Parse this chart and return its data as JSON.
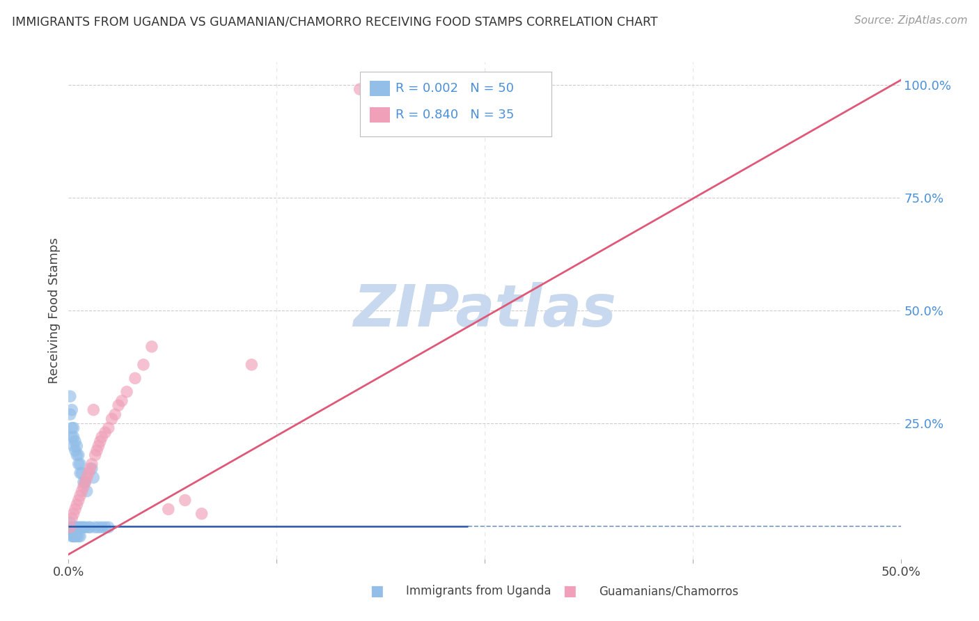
{
  "title": "IMMIGRANTS FROM UGANDA VS GUAMANIAN/CHAMORRO RECEIVING FOOD STAMPS CORRELATION CHART",
  "source": "Source: ZipAtlas.com",
  "ylabel": "Receiving Food Stamps",
  "xlim": [
    0.0,
    0.5
  ],
  "ylim": [
    -0.05,
    1.05
  ],
  "color_blue": "#92BEE8",
  "color_pink": "#F0A0B8",
  "line_blue": "#2255AA",
  "line_pink": "#E05878",
  "watermark": "ZIPatlas",
  "watermark_color": "#C8D8EE",
  "background_color": "#ffffff",
  "legend_label_blue": "Immigrants from Uganda",
  "legend_label_pink": "Guamanians/Chamorros",
  "blue_hline_y": 0.022,
  "blue_hline_xend": 0.24,
  "pink_line_x0": 0.0,
  "pink_line_x1": 0.5,
  "pink_line_y0": -0.04,
  "pink_line_y1": 1.01,
  "blue_scatter_x": [
    0.001,
    0.001,
    0.002,
    0.002,
    0.002,
    0.002,
    0.003,
    0.003,
    0.003,
    0.003,
    0.003,
    0.003,
    0.004,
    0.004,
    0.004,
    0.004,
    0.005,
    0.005,
    0.005,
    0.005,
    0.006,
    0.006,
    0.006,
    0.007,
    0.007,
    0.007,
    0.008,
    0.008,
    0.009,
    0.009,
    0.01,
    0.01,
    0.011,
    0.012,
    0.013,
    0.014,
    0.015,
    0.016,
    0.018,
    0.02,
    0.022,
    0.024,
    0.001,
    0.001,
    0.002,
    0.003,
    0.004,
    0.005,
    0.006,
    0.007
  ],
  "blue_scatter_y": [
    0.31,
    0.27,
    0.28,
    0.24,
    0.22,
    0.02,
    0.24,
    0.22,
    0.2,
    0.02,
    0.01,
    0.0,
    0.21,
    0.19,
    0.02,
    0.01,
    0.2,
    0.18,
    0.02,
    0.01,
    0.18,
    0.16,
    0.02,
    0.16,
    0.14,
    0.02,
    0.14,
    0.02,
    0.12,
    0.02,
    0.12,
    0.02,
    0.1,
    0.02,
    0.02,
    0.15,
    0.13,
    0.02,
    0.02,
    0.02,
    0.02,
    0.02,
    0.03,
    0.01,
    0.0,
    0.0,
    0.0,
    0.0,
    0.0,
    0.0
  ],
  "pink_scatter_x": [
    0.001,
    0.002,
    0.003,
    0.004,
    0.005,
    0.006,
    0.007,
    0.008,
    0.009,
    0.01,
    0.011,
    0.012,
    0.013,
    0.014,
    0.015,
    0.016,
    0.017,
    0.018,
    0.019,
    0.02,
    0.022,
    0.024,
    0.026,
    0.028,
    0.03,
    0.032,
    0.035,
    0.04,
    0.045,
    0.05,
    0.06,
    0.07,
    0.08,
    0.11,
    0.175
  ],
  "pink_scatter_y": [
    0.02,
    0.04,
    0.05,
    0.06,
    0.07,
    0.08,
    0.09,
    0.1,
    0.11,
    0.12,
    0.13,
    0.14,
    0.15,
    0.16,
    0.28,
    0.18,
    0.19,
    0.2,
    0.21,
    0.22,
    0.23,
    0.24,
    0.26,
    0.27,
    0.29,
    0.3,
    0.32,
    0.35,
    0.38,
    0.42,
    0.06,
    0.08,
    0.05,
    0.38,
    0.99
  ]
}
